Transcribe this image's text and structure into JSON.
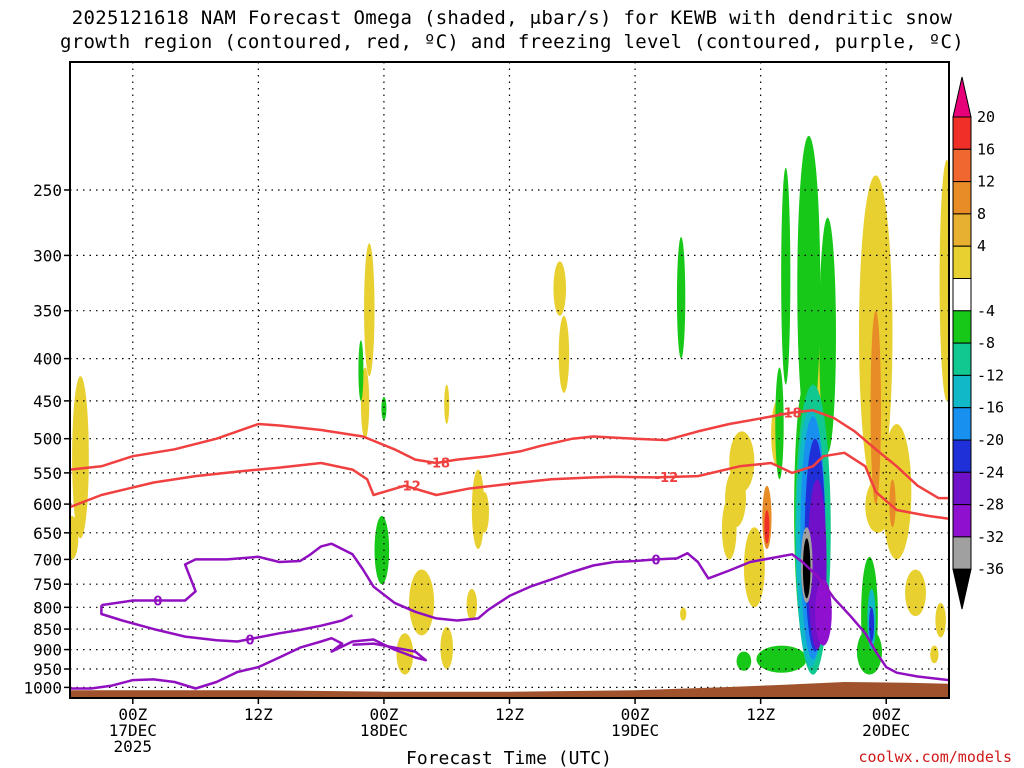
{
  "title": {
    "line1": "2025121618 NAM Forecast Omega (shaded, μbar/s) for KEWB with dendritic snow",
    "line2": "growth region (contoured, red, ºC) and freezing level (contoured, purple, ºC)"
  },
  "credit": "coolwx.com/models",
  "chart_data": {
    "type": "heatmap",
    "title": "2025121618 NAM Forecast Omega (shaded, μbar/s) for KEWB with dendritic snow growth region (contoured, red, ºC) and freezing level (contoured, purple, ºC)",
    "xlabel": "Forecast Time (UTC)",
    "ylabel": "",
    "x_range_hours_from_00Z_17DEC": [
      -3,
      39
    ],
    "ylim": [
      1030,
      175
    ],
    "y_ticks": [
      250,
      300,
      350,
      400,
      450,
      500,
      550,
      600,
      650,
      700,
      750,
      800,
      850,
      900,
      950,
      1000
    ],
    "x_ticks": [
      {
        "hour": 0,
        "lines": [
          "00Z",
          "17DEC",
          "2025"
        ]
      },
      {
        "hour": 6,
        "lines": [
          "12Z"
        ]
      },
      {
        "hour": 12,
        "lines": [
          "00Z",
          "18DEC"
        ]
      },
      {
        "hour": 18,
        "lines": [
          "12Z"
        ]
      },
      {
        "hour": 24,
        "lines": [
          "00Z",
          "19DEC"
        ]
      },
      {
        "hour": 30,
        "lines": [
          "12Z"
        ]
      },
      {
        "hour": 36,
        "lines": [
          "00Z",
          "20DEC"
        ]
      }
    ],
    "grid": true,
    "colorbar": {
      "labels": [
        "20",
        "16",
        "12",
        "8",
        "4",
        "-4",
        "-8",
        "-12",
        "-16",
        "-20",
        "-24",
        "-28",
        "-32",
        "-36"
      ],
      "colors": [
        "#e8007a",
        "#f03028",
        "#f06830",
        "#e88c28",
        "#e8b030",
        "#e8d030",
        "#ffffff",
        "#18c818",
        "#10c890",
        "#10b8c8",
        "#1890f0",
        "#2030d8",
        "#7010c8",
        "#9010d0",
        "#a0a0a0",
        "#000000"
      ]
    },
    "dgz_isotherms": [
      {
        "label": "-12",
        "color": "#f04040",
        "points": [
          [
            -3,
            605
          ],
          [
            -1.5,
            585
          ],
          [
            1,
            565
          ],
          [
            3,
            555
          ],
          [
            5,
            548
          ],
          [
            7,
            542
          ],
          [
            9,
            535
          ],
          [
            10.5,
            545
          ],
          [
            11.2,
            560
          ],
          [
            11.5,
            585
          ],
          [
            12,
            580
          ],
          [
            13,
            570
          ],
          [
            14.5,
            585
          ],
          [
            16,
            575
          ],
          [
            18,
            567
          ],
          [
            20,
            560
          ],
          [
            22,
            557
          ],
          [
            23,
            556
          ],
          [
            25,
            557
          ],
          [
            27,
            555
          ],
          [
            29,
            540
          ],
          [
            30.5,
            535
          ],
          [
            31.5,
            550
          ],
          [
            32.5,
            540
          ],
          [
            33,
            525
          ],
          [
            34,
            520
          ],
          [
            35,
            540
          ],
          [
            35.5,
            580
          ],
          [
            36.5,
            610
          ],
          [
            38,
            620
          ],
          [
            39,
            625
          ]
        ]
      },
      {
        "label": "-18",
        "color": "#f04040",
        "points": [
          [
            -3,
            545
          ],
          [
            -1.5,
            540
          ],
          [
            0,
            525
          ],
          [
            2,
            515
          ],
          [
            4,
            500
          ],
          [
            6,
            480
          ],
          [
            7,
            482
          ],
          [
            9,
            488
          ],
          [
            11,
            497
          ],
          [
            12.5,
            515
          ],
          [
            13.5,
            530
          ],
          [
            14.5,
            535
          ],
          [
            15.5,
            530
          ],
          [
            17,
            525
          ],
          [
            18.5,
            518
          ],
          [
            19.5,
            510
          ],
          [
            21,
            500
          ],
          [
            22,
            497
          ],
          [
            24,
            500
          ],
          [
            25.5,
            502
          ],
          [
            27,
            490
          ],
          [
            28.5,
            480
          ],
          [
            29.5,
            475
          ],
          [
            30.5,
            470
          ],
          [
            31.5,
            465
          ],
          [
            32.5,
            462
          ],
          [
            33.5,
            472
          ],
          [
            34.5,
            490
          ],
          [
            35.5,
            515
          ],
          [
            36.5,
            540
          ],
          [
            37.5,
            570
          ],
          [
            38.5,
            590
          ],
          [
            39,
            590
          ]
        ]
      }
    ],
    "freezing_level": [
      {
        "label": "0",
        "color": "#9010c0",
        "points": [
          [
            -3,
            1003
          ],
          [
            -2,
            1003
          ],
          [
            -1,
            995
          ],
          [
            0,
            980
          ],
          [
            1,
            978
          ],
          [
            2,
            985
          ],
          [
            3,
            1003
          ],
          [
            4,
            985
          ],
          [
            5,
            958
          ],
          [
            6,
            945
          ],
          [
            7,
            920
          ],
          [
            8,
            895
          ],
          [
            9,
            880
          ],
          [
            9.5,
            872
          ],
          [
            10,
            885
          ],
          [
            9.5,
            905
          ],
          [
            10.5,
            880
          ],
          [
            11.5,
            875
          ],
          [
            12.5,
            900
          ],
          [
            13.5,
            920
          ],
          [
            14,
            927
          ],
          [
            13.5,
            905
          ],
          [
            12.5,
            895
          ],
          [
            11.5,
            885
          ],
          [
            10.5,
            888
          ]
        ]
      },
      {
        "label": "0",
        "color": "#9010c0",
        "points": [
          [
            -1.5,
            795
          ],
          [
            0,
            785
          ],
          [
            1,
            785
          ],
          [
            2.5,
            785
          ],
          [
            3,
            765
          ],
          [
            2.5,
            710
          ],
          [
            3,
            700
          ],
          [
            4.5,
            700
          ],
          [
            6,
            695
          ],
          [
            7,
            705
          ],
          [
            8,
            703
          ],
          [
            8.5,
            690
          ],
          [
            9,
            675
          ],
          [
            9.5,
            670
          ],
          [
            10.5,
            690
          ],
          [
            11,
            720
          ],
          [
            11.5,
            755
          ],
          [
            12.5,
            790
          ],
          [
            13.5,
            810
          ],
          [
            14.5,
            825
          ],
          [
            15.5,
            830
          ],
          [
            16.5,
            825
          ],
          [
            17,
            805
          ],
          [
            17.5,
            790
          ],
          [
            18,
            775
          ],
          [
            19,
            755
          ],
          [
            20,
            740
          ],
          [
            21,
            725
          ],
          [
            22,
            712
          ],
          [
            23,
            705
          ],
          [
            24,
            703
          ],
          [
            25,
            700
          ],
          [
            26,
            698
          ],
          [
            26.5,
            688
          ],
          [
            27,
            705
          ],
          [
            27.5,
            738
          ],
          [
            28.5,
            722
          ],
          [
            29.5,
            705
          ],
          [
            31.5,
            690
          ],
          [
            32,
            705
          ],
          [
            32.5,
            725
          ],
          [
            33,
            748
          ],
          [
            33.5,
            780
          ],
          [
            34.3,
            820
          ],
          [
            35,
            860
          ],
          [
            35.5,
            905
          ],
          [
            36,
            945
          ],
          [
            36.5,
            960
          ],
          [
            37.5,
            970
          ],
          [
            39,
            980
          ]
        ]
      },
      {
        "label": "0",
        "color": "#9010c0",
        "points": [
          [
            -1.5,
            795
          ],
          [
            -1.5,
            815
          ],
          [
            -0.5,
            830
          ],
          [
            1,
            850
          ],
          [
            2.5,
            868
          ],
          [
            4,
            877
          ],
          [
            5,
            880
          ],
          [
            6,
            870
          ],
          [
            7,
            860
          ],
          [
            8,
            852
          ],
          [
            9,
            842
          ],
          [
            10,
            830
          ],
          [
            10.5,
            818
          ]
        ]
      }
    ],
    "omega_regions": [
      {
        "value_range": "4 to 8",
        "color": "#e8d030",
        "type": "ascent",
        "location": "scattered mid-level cells 400-1000 hPa"
      },
      {
        "value_range": "8 to 16",
        "color": "#e88c28",
        "type": "ascent",
        "location": "near 32Z-37Z, 400-650 hPa"
      },
      {
        "value_range": "16 to 20",
        "color": "#f03028",
        "type": "ascent",
        "location": "near 30Z, 620-660 hPa"
      },
      {
        "value_range": "-4 to -12",
        "color": "#18c818",
        "type": "descent",
        "location": "scattered, 250-1000 hPa"
      },
      {
        "value_range": "-12 to -36",
        "color": "#2030d8",
        "type": "descent",
        "location": "core near 32Z, 400-950 hPa"
      },
      {
        "value_range": "< -36",
        "color": "#000000",
        "type": "descent",
        "location": "near 32Z, 650-780 hPa"
      }
    ]
  }
}
